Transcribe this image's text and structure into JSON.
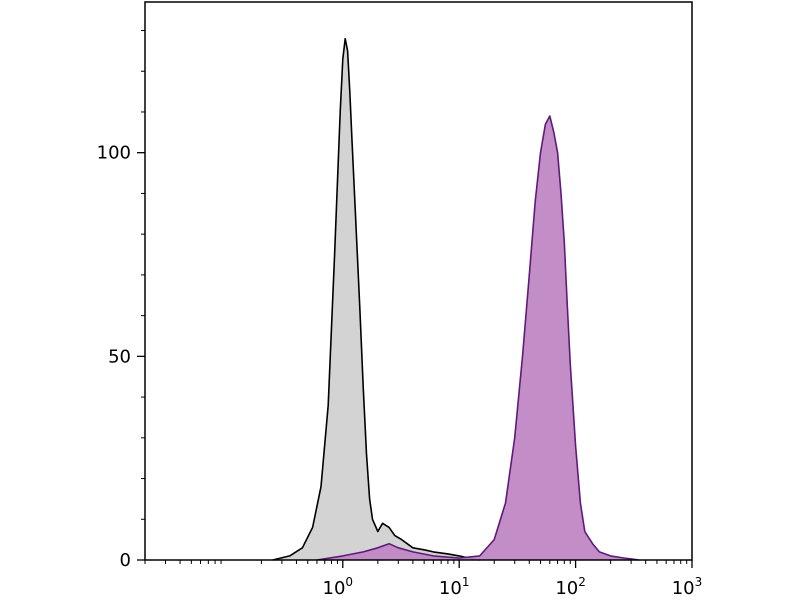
{
  "chart_data": {
    "type": "area",
    "title": "",
    "xlabel": "",
    "ylabel": "",
    "x_scale": "log",
    "xlim": [
      0.02,
      1000
    ],
    "ylim": [
      0,
      137
    ],
    "x_ticks": [
      {
        "value": 1,
        "base": "10",
        "exp": "0"
      },
      {
        "value": 10,
        "base": "10",
        "exp": "1"
      },
      {
        "value": 100,
        "base": "10",
        "exp": "2"
      },
      {
        "value": 1000,
        "base": "10",
        "exp": "3"
      }
    ],
    "y_ticks": [
      {
        "value": 0,
        "label": "0"
      },
      {
        "value": 50,
        "label": "50"
      },
      {
        "value": 100,
        "label": "100"
      }
    ],
    "grid": false,
    "legend": "none",
    "series": [
      {
        "fill": "#d3d3d3",
        "stroke": "#000000",
        "x": [
          0.25,
          0.35,
          0.45,
          0.55,
          0.65,
          0.75,
          0.85,
          0.95,
          1.0,
          1.05,
          1.1,
          1.15,
          1.2,
          1.3,
          1.4,
          1.5,
          1.6,
          1.7,
          1.8,
          2.0,
          2.2,
          2.5,
          2.8,
          3.2,
          4.0,
          5.0,
          6.0,
          8.0,
          10.0,
          12.0,
          15.0
        ],
        "y": [
          0,
          1,
          3,
          8,
          18,
          38,
          75,
          110,
          123,
          128,
          125,
          115,
          103,
          82,
          62,
          42,
          26,
          15,
          10,
          7,
          9,
          8,
          6,
          5,
          3,
          2.5,
          2,
          1.5,
          1,
          0.5,
          0
        ]
      },
      {
        "fill": "#c088c4",
        "stroke": "#5e1a7a",
        "x": [
          0.6,
          1.0,
          1.5,
          2.0,
          2.5,
          3.0,
          4.0,
          6.0,
          10.0,
          15.0,
          20.0,
          25.0,
          30.0,
          35.0,
          40.0,
          45.0,
          50.0,
          55.0,
          60.0,
          65.0,
          70.0,
          75.0,
          80.0,
          85.0,
          90.0,
          100.0,
          110.0,
          120.0,
          140.0,
          160.0,
          200.0,
          260.0,
          350.0
        ],
        "y": [
          0,
          1,
          2,
          3,
          4,
          3,
          2,
          1,
          0.5,
          1,
          5,
          14,
          30,
          50,
          70,
          88,
          100,
          107,
          109,
          105,
          100,
          90,
          78,
          62,
          48,
          28,
          14,
          7,
          4,
          2,
          1,
          0.5,
          0
        ]
      }
    ]
  }
}
